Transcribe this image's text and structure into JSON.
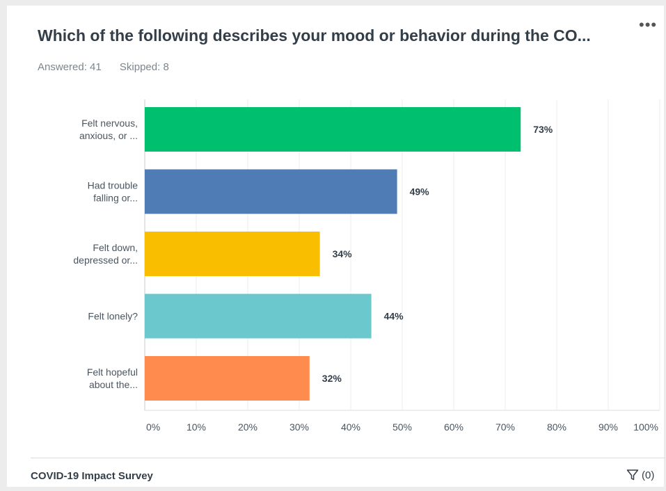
{
  "header": {
    "title": "Which of the following describes your mood or behavior during the CO...",
    "more_menu": "•••",
    "answered": "Answered: 41",
    "skipped": "Skipped: 8"
  },
  "footer": {
    "survey_name": "COVID-19 Impact Survey",
    "filter_count": "(0)"
  },
  "chart_data": {
    "type": "bar",
    "orientation": "horizontal",
    "categories": [
      [
        "Felt nervous,",
        "anxious, or ..."
      ],
      [
        "Had trouble",
        "falling or..."
      ],
      [
        "Felt down,",
        "depressed or..."
      ],
      [
        "Felt lonely?"
      ],
      [
        "Felt hopeful",
        "about the..."
      ]
    ],
    "values": [
      73,
      49,
      34,
      44,
      32
    ],
    "value_labels": [
      "73%",
      "49%",
      "34%",
      "44%",
      "32%"
    ],
    "colors": [
      "#00bf6f",
      "#507cb6",
      "#f9be00",
      "#6bc8cd",
      "#ff8b4f"
    ],
    "xlim": [
      0,
      100
    ],
    "xticks": [
      "0%",
      "10%",
      "20%",
      "30%",
      "40%",
      "50%",
      "60%",
      "70%",
      "80%",
      "90%",
      "100%"
    ],
    "grid": true
  }
}
